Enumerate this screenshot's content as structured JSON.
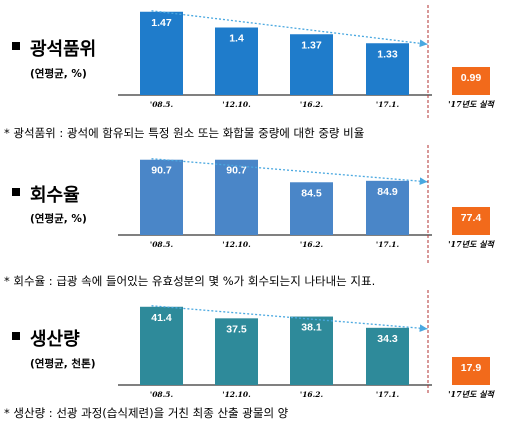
{
  "panels": [
    {
      "title": "광석품위",
      "unit": "(연평균, %)",
      "note": "* 광석품위 : 광석에 함유되는 특정 원소 또는 화합물 중량에 대한 중량 비율",
      "bar_color": "#1f7ccb",
      "actual_color": "#f26a1b",
      "trend_color": "#4aa8e0"
    },
    {
      "title": "회수율",
      "unit": "(연평균, %)",
      "note": "* 회수율 : 급광 속에 들어있는 유효성분의 몇 %가 회수되는지 나타내는 지표.",
      "bar_color": "#4a86c8",
      "actual_color": "#f26a1b",
      "trend_color": "#4aa8e0"
    },
    {
      "title": "생산량",
      "unit": "(연평균, 천톤)",
      "note": "* 생산량 : 선광 과정(습식제련)을 거친 최종 산출 광물의 양",
      "bar_color": "#2e8a9a",
      "actual_color": "#f26a1b",
      "trend_color": "#4aa8e0"
    }
  ],
  "chart_data": [
    {
      "type": "bar",
      "categories": [
        "'08.5.",
        "'12.10.",
        "'16.2.",
        "'17.1."
      ],
      "values": [
        1.47,
        1.4,
        1.37,
        1.33
      ],
      "actual_label": "'17년도 실적",
      "actual_value": 0.99
    },
    {
      "type": "bar",
      "categories": [
        "'08.5.",
        "'12.10.",
        "'16.2.",
        "'17.1."
      ],
      "values": [
        90.7,
        90.7,
        84.5,
        84.9
      ],
      "actual_label": "'17년도 실적",
      "actual_value": 77.4
    },
    {
      "type": "bar",
      "categories": [
        "'08.5.",
        "'12.10.",
        "'16.2.",
        "'17.1."
      ],
      "values": [
        41.4,
        37.5,
        38.1,
        34.3
      ],
      "actual_label": "'17년도 실적",
      "actual_value": 17.9
    }
  ]
}
